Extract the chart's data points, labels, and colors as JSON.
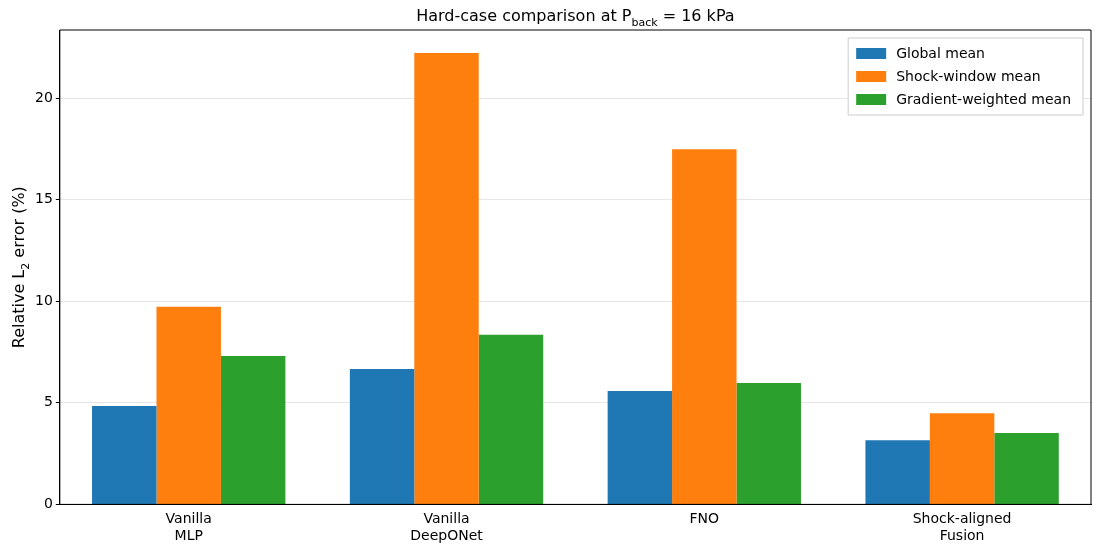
{
  "chart_data": {
    "type": "bar",
    "title": "Hard-case comparison at P$_{back}$ = 16 kPa",
    "ylabel": "Relative L$_{2}$ error (%)",
    "categories": [
      "Vanilla\nMLP",
      "Vanilla\nDeepONet",
      "FNO",
      "Shock-aligned\nFusion"
    ],
    "series": [
      {
        "name": "Global mean",
        "color": "#1f77b4",
        "values": [
          4.84,
          6.67,
          5.58,
          3.16
        ]
      },
      {
        "name": "Shock-window mean",
        "color": "#ff7f0e",
        "values": [
          9.73,
          22.22,
          17.48,
          4.49
        ]
      },
      {
        "name": "Gradient-weighted mean",
        "color": "#2ca02c",
        "values": [
          7.31,
          8.35,
          5.98,
          3.51
        ]
      }
    ],
    "ylim": [
      0,
      23.35
    ],
    "yticks": [
      0,
      5,
      10,
      15,
      20
    ],
    "grid": "y",
    "legend": "top right"
  }
}
